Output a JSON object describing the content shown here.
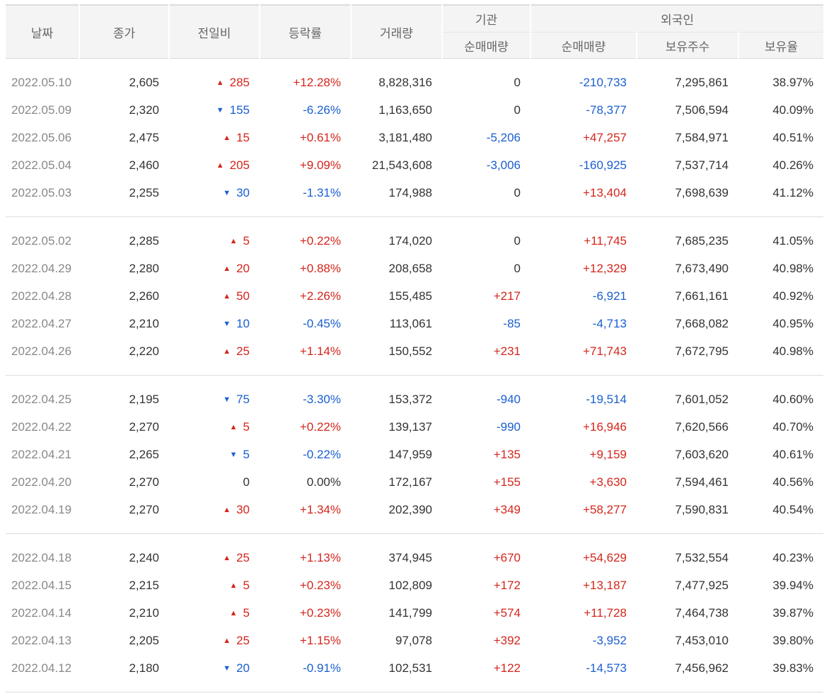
{
  "headers": {
    "date": "날짜",
    "close": "종가",
    "change": "전일비",
    "rate": "등락률",
    "volume": "거래량",
    "inst_group": "기관",
    "inst_net": "순매매량",
    "foreign_group": "외국인",
    "foreign_net": "순매매량",
    "holdings": "보유주수",
    "ratio": "보유율"
  },
  "colors": {
    "up": "#d3261c",
    "down": "#1a5fd0",
    "header_bg": "#f4f4f4"
  },
  "icons": {
    "up": "up-triangle-icon",
    "down": "down-triangle-icon"
  },
  "groups": [
    [
      {
        "date": "2022.05.10",
        "close": "2,605",
        "dir": "up",
        "change": "285",
        "rate": "+12.28%",
        "volume": "8,828,316",
        "inst": "0",
        "inst_dir": "flat",
        "foreign": "-210,733",
        "foreign_dir": "down",
        "holdings": "7,295,861",
        "ratio": "38.97%"
      },
      {
        "date": "2022.05.09",
        "close": "2,320",
        "dir": "down",
        "change": "155",
        "rate": "-6.26%",
        "volume": "1,163,650",
        "inst": "0",
        "inst_dir": "flat",
        "foreign": "-78,377",
        "foreign_dir": "down",
        "holdings": "7,506,594",
        "ratio": "40.09%"
      },
      {
        "date": "2022.05.06",
        "close": "2,475",
        "dir": "up",
        "change": "15",
        "rate": "+0.61%",
        "volume": "3,181,480",
        "inst": "-5,206",
        "inst_dir": "down",
        "foreign": "+47,257",
        "foreign_dir": "up",
        "holdings": "7,584,971",
        "ratio": "40.51%"
      },
      {
        "date": "2022.05.04",
        "close": "2,460",
        "dir": "up",
        "change": "205",
        "rate": "+9.09%",
        "volume": "21,543,608",
        "inst": "-3,006",
        "inst_dir": "down",
        "foreign": "-160,925",
        "foreign_dir": "down",
        "holdings": "7,537,714",
        "ratio": "40.26%"
      },
      {
        "date": "2022.05.03",
        "close": "2,255",
        "dir": "down",
        "change": "30",
        "rate": "-1.31%",
        "volume": "174,988",
        "inst": "0",
        "inst_dir": "flat",
        "foreign": "+13,404",
        "foreign_dir": "up",
        "holdings": "7,698,639",
        "ratio": "41.12%"
      }
    ],
    [
      {
        "date": "2022.05.02",
        "close": "2,285",
        "dir": "up",
        "change": "5",
        "rate": "+0.22%",
        "volume": "174,020",
        "inst": "0",
        "inst_dir": "flat",
        "foreign": "+11,745",
        "foreign_dir": "up",
        "holdings": "7,685,235",
        "ratio": "41.05%"
      },
      {
        "date": "2022.04.29",
        "close": "2,280",
        "dir": "up",
        "change": "20",
        "rate": "+0.88%",
        "volume": "208,658",
        "inst": "0",
        "inst_dir": "flat",
        "foreign": "+12,329",
        "foreign_dir": "up",
        "holdings": "7,673,490",
        "ratio": "40.98%"
      },
      {
        "date": "2022.04.28",
        "close": "2,260",
        "dir": "up",
        "change": "50",
        "rate": "+2.26%",
        "volume": "155,485",
        "inst": "+217",
        "inst_dir": "up",
        "foreign": "-6,921",
        "foreign_dir": "down",
        "holdings": "7,661,161",
        "ratio": "40.92%"
      },
      {
        "date": "2022.04.27",
        "close": "2,210",
        "dir": "down",
        "change": "10",
        "rate": "-0.45%",
        "volume": "113,061",
        "inst": "-85",
        "inst_dir": "down",
        "foreign": "-4,713",
        "foreign_dir": "down",
        "holdings": "7,668,082",
        "ratio": "40.95%"
      },
      {
        "date": "2022.04.26",
        "close": "2,220",
        "dir": "up",
        "change": "25",
        "rate": "+1.14%",
        "volume": "150,552",
        "inst": "+231",
        "inst_dir": "up",
        "foreign": "+71,743",
        "foreign_dir": "up",
        "holdings": "7,672,795",
        "ratio": "40.98%"
      }
    ],
    [
      {
        "date": "2022.04.25",
        "close": "2,195",
        "dir": "down",
        "change": "75",
        "rate": "-3.30%",
        "volume": "153,372",
        "inst": "-940",
        "inst_dir": "down",
        "foreign": "-19,514",
        "foreign_dir": "down",
        "holdings": "7,601,052",
        "ratio": "40.60%"
      },
      {
        "date": "2022.04.22",
        "close": "2,270",
        "dir": "up",
        "change": "5",
        "rate": "+0.22%",
        "volume": "139,137",
        "inst": "-990",
        "inst_dir": "down",
        "foreign": "+16,946",
        "foreign_dir": "up",
        "holdings": "7,620,566",
        "ratio": "40.70%"
      },
      {
        "date": "2022.04.21",
        "close": "2,265",
        "dir": "down",
        "change": "5",
        "rate": "-0.22%",
        "volume": "147,959",
        "inst": "+135",
        "inst_dir": "up",
        "foreign": "+9,159",
        "foreign_dir": "up",
        "holdings": "7,603,620",
        "ratio": "40.61%"
      },
      {
        "date": "2022.04.20",
        "close": "2,270",
        "dir": "flat",
        "change": "0",
        "rate": "0.00%",
        "volume": "172,167",
        "inst": "+155",
        "inst_dir": "up",
        "foreign": "+3,630",
        "foreign_dir": "up",
        "holdings": "7,594,461",
        "ratio": "40.56%"
      },
      {
        "date": "2022.04.19",
        "close": "2,270",
        "dir": "up",
        "change": "30",
        "rate": "+1.34%",
        "volume": "202,390",
        "inst": "+349",
        "inst_dir": "up",
        "foreign": "+58,277",
        "foreign_dir": "up",
        "holdings": "7,590,831",
        "ratio": "40.54%"
      }
    ],
    [
      {
        "date": "2022.04.18",
        "close": "2,240",
        "dir": "up",
        "change": "25",
        "rate": "+1.13%",
        "volume": "374,945",
        "inst": "+670",
        "inst_dir": "up",
        "foreign": "+54,629",
        "foreign_dir": "up",
        "holdings": "7,532,554",
        "ratio": "40.23%"
      },
      {
        "date": "2022.04.15",
        "close": "2,215",
        "dir": "up",
        "change": "5",
        "rate": "+0.23%",
        "volume": "102,809",
        "inst": "+172",
        "inst_dir": "up",
        "foreign": "+13,187",
        "foreign_dir": "up",
        "holdings": "7,477,925",
        "ratio": "39.94%"
      },
      {
        "date": "2022.04.14",
        "close": "2,210",
        "dir": "up",
        "change": "5",
        "rate": "+0.23%",
        "volume": "141,799",
        "inst": "+574",
        "inst_dir": "up",
        "foreign": "+11,728",
        "foreign_dir": "up",
        "holdings": "7,464,738",
        "ratio": "39.87%"
      },
      {
        "date": "2022.04.13",
        "close": "2,205",
        "dir": "up",
        "change": "25",
        "rate": "+1.15%",
        "volume": "97,078",
        "inst": "+392",
        "inst_dir": "up",
        "foreign": "-3,952",
        "foreign_dir": "down",
        "holdings": "7,453,010",
        "ratio": "39.80%"
      },
      {
        "date": "2022.04.12",
        "close": "2,180",
        "dir": "down",
        "change": "20",
        "rate": "-0.91%",
        "volume": "102,531",
        "inst": "+122",
        "inst_dir": "up",
        "foreign": "-14,573",
        "foreign_dir": "down",
        "holdings": "7,456,962",
        "ratio": "39.83%"
      }
    ]
  ]
}
